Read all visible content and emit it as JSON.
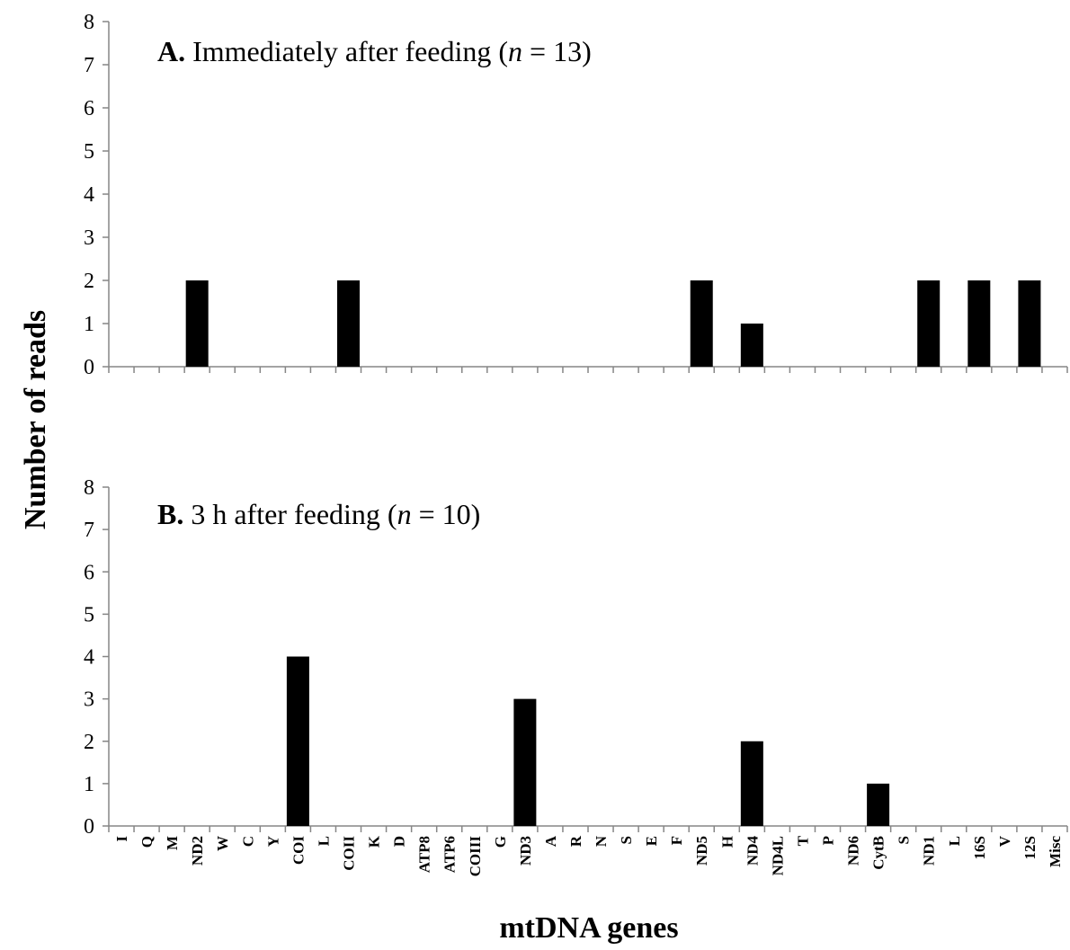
{
  "chart_data": {
    "type": "bar",
    "ylabel": "Number of reads",
    "xlabel": "mtDNA genes",
    "ylim": [
      0,
      8
    ],
    "categories": [
      "I",
      "Q",
      "M",
      "ND2",
      "W",
      "C",
      "Y",
      "COI",
      "L",
      "COII",
      "K",
      "D",
      "ATP8",
      "ATP6",
      "COIII",
      "G",
      "ND3",
      "A",
      "R",
      "N",
      "S",
      "E",
      "F",
      "ND5",
      "H",
      "ND4",
      "ND4L",
      "T",
      "P",
      "ND6",
      "CytB",
      "S",
      "ND1",
      "L",
      "16S",
      "V",
      "12S",
      "Misc"
    ],
    "panels": [
      {
        "label": "A.",
        "title_main": "Immediately after feeding (",
        "title_n": "n",
        "title_end": " = 13)",
        "series": [
          {
            "values": [
              0,
              0,
              0,
              2,
              0,
              0,
              0,
              0,
              0,
              2,
              0,
              0,
              0,
              0,
              0,
              0,
              0,
              0,
              0,
              0,
              0,
              0,
              0,
              2,
              0,
              1,
              0,
              0,
              0,
              0,
              0,
              0,
              2,
              0,
              2,
              0,
              2,
              0
            ]
          }
        ]
      },
      {
        "label": "B.",
        "title_main": "3 h after feeding (",
        "title_n": "n",
        "title_end": " = 10)",
        "series": [
          {
            "values": [
              0,
              0,
              0,
              0,
              0,
              0,
              0,
              4,
              0,
              0,
              0,
              0,
              0,
              0,
              0,
              0,
              3,
              0,
              0,
              0,
              0,
              0,
              0,
              0,
              0,
              2,
              0,
              0,
              0,
              0,
              1,
              0,
              0,
              0,
              0,
              0,
              0,
              0
            ]
          }
        ]
      }
    ],
    "grid": false,
    "legend": "none"
  }
}
